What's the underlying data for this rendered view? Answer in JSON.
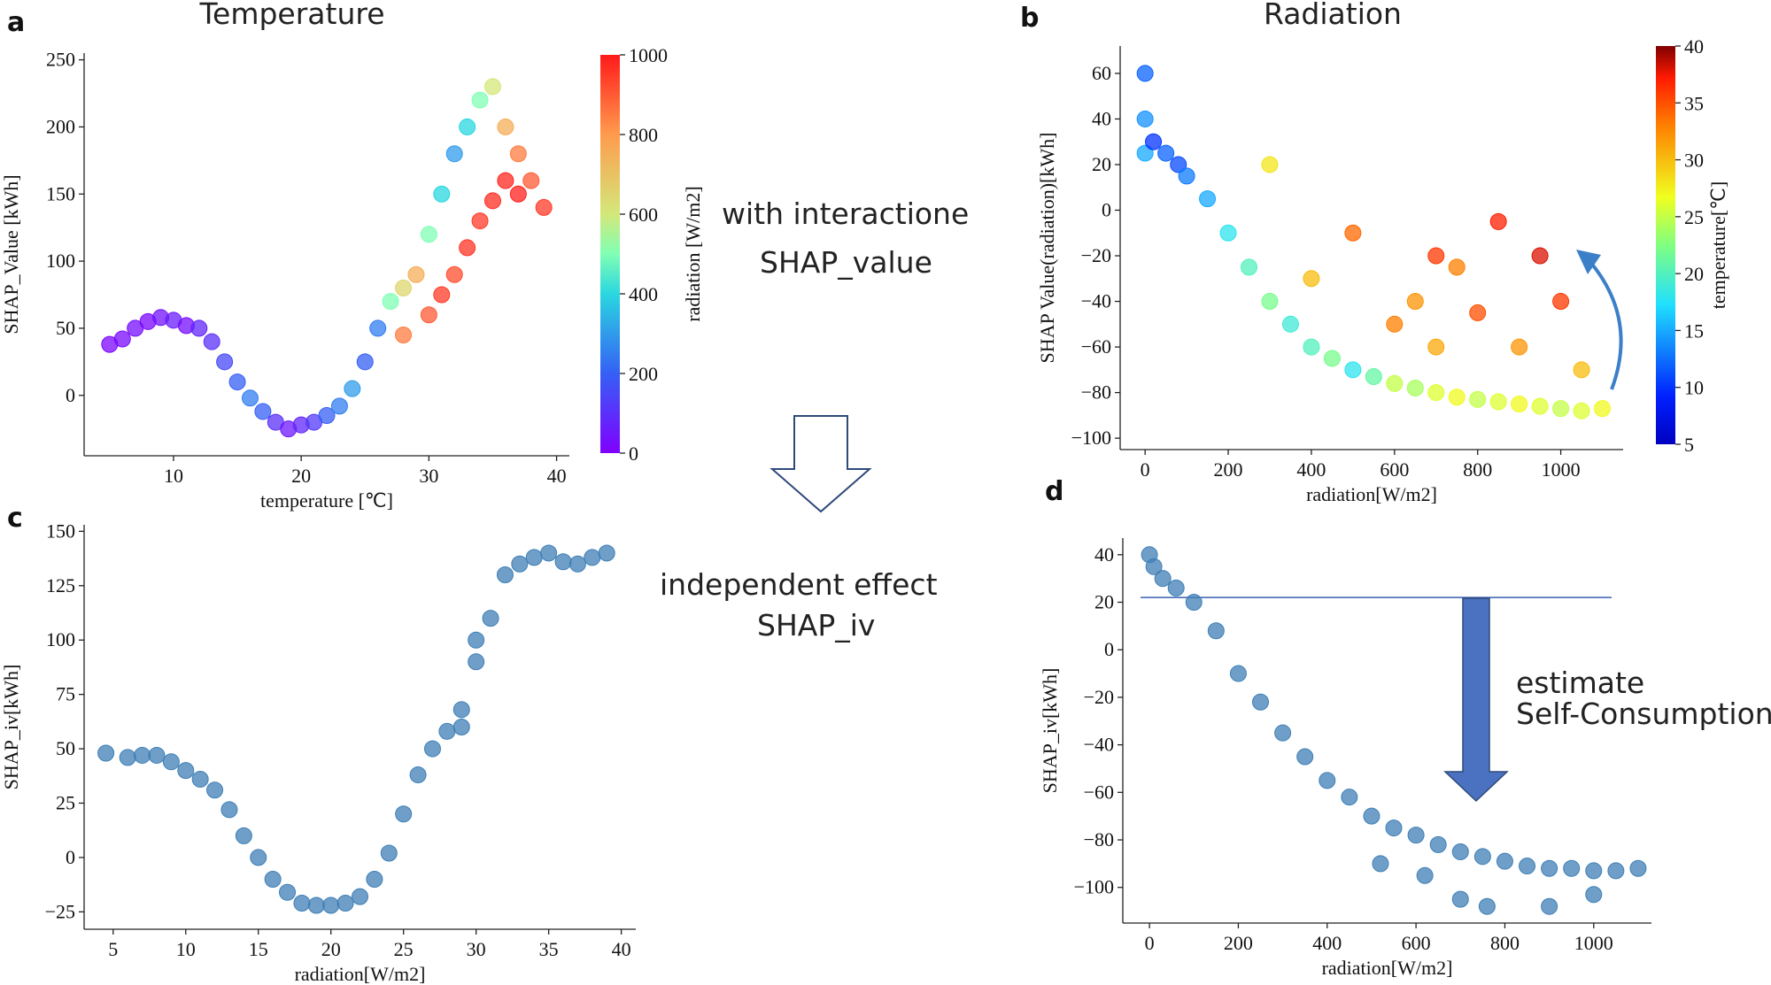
{
  "chart_data": [
    {
      "id": "a",
      "type": "scatter",
      "panel_label": "a",
      "title": "Temperature",
      "xlabel": "temperature [℃]",
      "ylabel": "SHAP_Value [kWh]",
      "xlim": [
        3,
        41
      ],
      "ylim": [
        -45,
        255
      ],
      "xticks": [
        10,
        20,
        30,
        40
      ],
      "yticks": [
        0,
        50,
        100,
        150,
        200,
        250
      ],
      "color_by": "radiation",
      "colorbar": {
        "label": "radiation [W/m2]",
        "min": 0,
        "max": 1000,
        "ticks": [
          0,
          200,
          400,
          600,
          800,
          1000
        ],
        "cmap": "rainbow"
      },
      "points": [
        [
          5,
          38,
          10
        ],
        [
          6,
          42,
          20
        ],
        [
          7,
          50,
          30
        ],
        [
          8,
          55,
          15
        ],
        [
          9,
          58,
          40
        ],
        [
          10,
          56,
          60
        ],
        [
          11,
          52,
          30
        ],
        [
          12,
          50,
          80
        ],
        [
          13,
          40,
          100
        ],
        [
          14,
          25,
          150
        ],
        [
          15,
          10,
          200
        ],
        [
          16,
          -2,
          250
        ],
        [
          17,
          -12,
          200
        ],
        [
          18,
          -20,
          100
        ],
        [
          19,
          -25,
          50
        ],
        [
          20,
          -22,
          80
        ],
        [
          21,
          -20,
          120
        ],
        [
          22,
          -15,
          200
        ],
        [
          23,
          -8,
          250
        ],
        [
          24,
          5,
          300
        ],
        [
          25,
          25,
          200
        ],
        [
          26,
          50,
          250
        ],
        [
          27,
          70,
          500
        ],
        [
          28,
          80,
          650
        ],
        [
          29,
          90,
          750
        ],
        [
          30,
          120,
          500
        ],
        [
          31,
          150,
          400
        ],
        [
          32,
          180,
          300
        ],
        [
          33,
          200,
          400
        ],
        [
          34,
          220,
          500
        ],
        [
          35,
          230,
          600
        ],
        [
          36,
          200,
          750
        ],
        [
          37,
          180,
          850
        ],
        [
          38,
          160,
          900
        ],
        [
          39,
          140,
          950
        ],
        [
          30,
          60,
          900
        ],
        [
          32,
          90,
          920
        ],
        [
          34,
          130,
          950
        ],
        [
          36,
          160,
          980
        ],
        [
          28,
          45,
          850
        ],
        [
          31,
          75,
          950
        ],
        [
          33,
          110,
          960
        ],
        [
          35,
          145,
          970
        ],
        [
          37,
          150,
          990
        ]
      ]
    },
    {
      "id": "b",
      "type": "scatter",
      "panel_label": "b",
      "title": "Radiation",
      "xlabel": "radiation[W/m2]",
      "ylabel": "SHAP Value(radiation)[kWh]",
      "xlim": [
        -60,
        1150
      ],
      "ylim": [
        -105,
        72
      ],
      "xticks": [
        0,
        200,
        400,
        600,
        800,
        1000
      ],
      "yticks": [
        -100,
        -80,
        -60,
        -40,
        -20,
        0,
        20,
        40,
        60
      ],
      "color_by": "temperature",
      "colorbar": {
        "label": "temperature[℃]",
        "min": 5,
        "max": 40,
        "ticks": [
          5,
          10,
          15,
          20,
          25,
          30,
          35,
          40
        ],
        "cmap": "jet"
      },
      "points": [
        [
          0,
          60,
          12
        ],
        [
          0,
          40,
          14
        ],
        [
          0,
          25,
          15
        ],
        [
          20,
          30,
          10
        ],
        [
          50,
          25,
          12
        ],
        [
          80,
          20,
          11
        ],
        [
          100,
          15,
          13
        ],
        [
          150,
          5,
          15
        ],
        [
          200,
          -10,
          18
        ],
        [
          250,
          -25,
          20
        ],
        [
          300,
          -40,
          22
        ],
        [
          350,
          -50,
          19
        ],
        [
          400,
          -60,
          20
        ],
        [
          450,
          -65,
          22
        ],
        [
          500,
          -70,
          18
        ],
        [
          550,
          -73,
          21
        ],
        [
          600,
          -76,
          25
        ],
        [
          650,
          -78,
          24
        ],
        [
          700,
          -80,
          26
        ],
        [
          750,
          -82,
          27
        ],
        [
          800,
          -83,
          25
        ],
        [
          850,
          -84,
          26
        ],
        [
          900,
          -85,
          27
        ],
        [
          950,
          -86,
          26
        ],
        [
          1000,
          -87,
          25
        ],
        [
          1050,
          -88,
          26
        ],
        [
          1100,
          -87,
          27
        ],
        [
          300,
          20,
          28
        ],
        [
          500,
          -10,
          34
        ],
        [
          700,
          -20,
          36
        ],
        [
          750,
          -25,
          33
        ],
        [
          850,
          -5,
          37
        ],
        [
          950,
          -20,
          38
        ],
        [
          1000,
          -40,
          36
        ],
        [
          600,
          -50,
          33
        ],
        [
          800,
          -45,
          35
        ],
        [
          900,
          -60,
          32
        ],
        [
          700,
          -60,
          31
        ],
        [
          1050,
          -70,
          30
        ],
        [
          400,
          -30,
          30
        ],
        [
          650,
          -40,
          32
        ]
      ],
      "annotation": "curved arrow pointing upward"
    },
    {
      "id": "c",
      "type": "scatter",
      "panel_label": "c",
      "xlabel": "radiation[W/m2]",
      "ylabel": "SHAP_iv[kWh]",
      "xlim": [
        3,
        41
      ],
      "ylim": [
        -33,
        153
      ],
      "xticks": [
        5,
        10,
        15,
        20,
        25,
        30,
        35,
        40
      ],
      "yticks": [
        -25,
        0,
        25,
        50,
        75,
        100,
        125,
        150
      ],
      "color": "#3f7fb5",
      "points": [
        [
          4.5,
          48
        ],
        [
          6,
          46
        ],
        [
          7,
          47
        ],
        [
          8,
          47
        ],
        [
          9,
          44
        ],
        [
          10,
          40
        ],
        [
          11,
          36
        ],
        [
          12,
          31
        ],
        [
          13,
          22
        ],
        [
          14,
          10
        ],
        [
          15,
          0
        ],
        [
          16,
          -10
        ],
        [
          17,
          -16
        ],
        [
          18,
          -21
        ],
        [
          19,
          -22
        ],
        [
          20,
          -22
        ],
        [
          21,
          -21
        ],
        [
          22,
          -18
        ],
        [
          23,
          -10
        ],
        [
          24,
          2
        ],
        [
          25,
          20
        ],
        [
          26,
          38
        ],
        [
          27,
          50
        ],
        [
          28,
          58
        ],
        [
          29,
          68
        ],
        [
          30,
          90
        ],
        [
          31,
          110
        ],
        [
          32,
          130
        ],
        [
          33,
          135
        ],
        [
          34,
          138
        ],
        [
          35,
          140
        ],
        [
          36,
          136
        ],
        [
          37,
          135
        ],
        [
          38,
          138
        ],
        [
          39,
          140
        ],
        [
          29,
          60
        ],
        [
          30,
          100
        ]
      ]
    },
    {
      "id": "d",
      "type": "scatter",
      "panel_label": "d",
      "xlabel": "radiation[W/m2]",
      "ylabel": "SHAP_iv[kWh]",
      "xlim": [
        -60,
        1130
      ],
      "ylim": [
        -115,
        47
      ],
      "xticks": [
        0,
        200,
        400,
        600,
        800,
        1000
      ],
      "yticks": [
        -100,
        -80,
        -60,
        -40,
        -20,
        0,
        20,
        40
      ],
      "color": "#3f7fb5",
      "hline": 22,
      "points": [
        [
          0,
          40
        ],
        [
          10,
          35
        ],
        [
          30,
          30
        ],
        [
          60,
          26
        ],
        [
          100,
          20
        ],
        [
          150,
          8
        ],
        [
          200,
          -10
        ],
        [
          250,
          -22
        ],
        [
          300,
          -35
        ],
        [
          350,
          -45
        ],
        [
          400,
          -55
        ],
        [
          450,
          -62
        ],
        [
          500,
          -70
        ],
        [
          550,
          -75
        ],
        [
          600,
          -78
        ],
        [
          650,
          -82
        ],
        [
          700,
          -85
        ],
        [
          750,
          -87
        ],
        [
          800,
          -89
        ],
        [
          850,
          -91
        ],
        [
          900,
          -92
        ],
        [
          950,
          -92
        ],
        [
          1000,
          -93
        ],
        [
          1050,
          -93
        ],
        [
          1100,
          -92
        ],
        [
          520,
          -90
        ],
        [
          620,
          -95
        ],
        [
          700,
          -105
        ],
        [
          760,
          -108
        ],
        [
          900,
          -108
        ],
        [
          1000,
          -103
        ]
      ]
    }
  ],
  "annotations": {
    "interaction_line1": "with interactione",
    "interaction_line2": "SHAP_value",
    "independent_line1": "independent effect",
    "independent_line2": "SHAP_iv",
    "estimate_line1": "estimate",
    "estimate_line2": "Self-Consumption"
  },
  "colors": {
    "scatter_blue": "#3f7fb5",
    "arrow_blue": "#4a72c0",
    "curved_arrow": "#3b7fc9",
    "hline": "#3a5fb0"
  }
}
